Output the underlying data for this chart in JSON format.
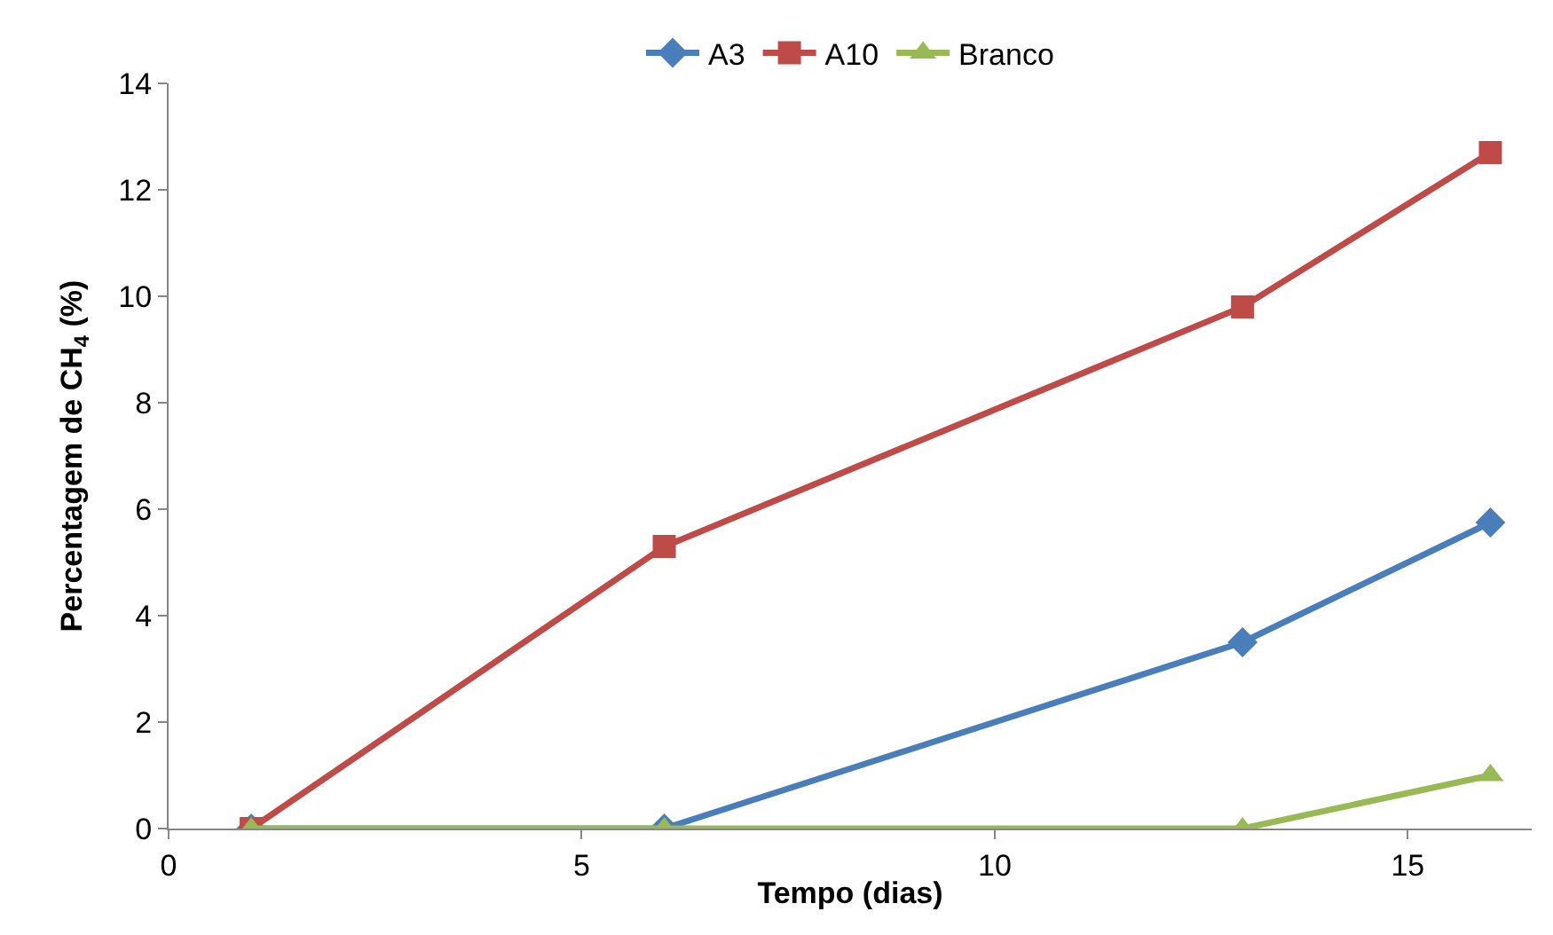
{
  "chart_data": {
    "type": "line",
    "xlabel": "Tempo (dias)",
    "ylabel": "Percentagem de CH$_{4}$ (%)",
    "x": [
      1,
      6,
      13,
      16
    ],
    "series": [
      {
        "name": "A3",
        "color": "#4a7ebb",
        "values": [
          0,
          0,
          3.5,
          5.75
        ],
        "marker": "diamond"
      },
      {
        "name": "A10",
        "color": "#be4b48",
        "values": [
          0,
          5.3,
          9.8,
          12.7
        ],
        "marker": "square"
      },
      {
        "name": "Branco",
        "color": "#98b954",
        "values": [
          0,
          0,
          0,
          1.0
        ],
        "marker": "triangle"
      }
    ],
    "xlim": [
      0,
      16.5
    ],
    "xticks": [
      0,
      5,
      10,
      15
    ],
    "ylim": [
      0,
      14
    ],
    "yticks": [
      0,
      2,
      4,
      6,
      8,
      10,
      12,
      14
    ],
    "legend": "top",
    "line_style": "solid"
  }
}
